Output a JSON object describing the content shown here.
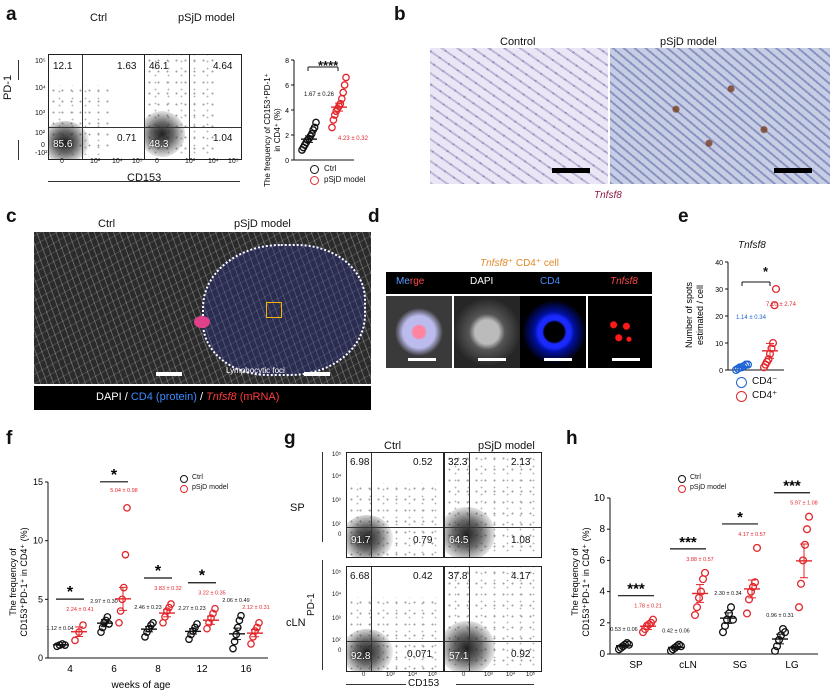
{
  "panels": {
    "a": {
      "label": "a",
      "titles": [
        "Ctrl",
        "pSjD model"
      ],
      "y_axis": "PD-1",
      "x_axis": "CD153",
      "ctrl_quadrants": {
        "ul": "12.1",
        "ur": "1.63",
        "ll": "85.6",
        "lr": "0.71"
      },
      "psjd_quadrants": {
        "ul": "46.1",
        "ur": "4.64",
        "ll": "48.3",
        "lr": "1.04"
      },
      "ticks": {
        "y": [
          "10⁵",
          "10⁴",
          "10³",
          "10²",
          "0",
          "-10²"
        ],
        "x": [
          "0",
          "10³",
          "10⁴",
          "10⁵"
        ]
      },
      "scatter_ylabel_line1": "The frequency of CD153⁺PD-1⁺",
      "scatter_ylabel_line2": "in CD4⁺ (%)",
      "sig": "****",
      "ctrl_stat": "1.67 ± 0.26",
      "psjd_stat": "4.23 ± 0.32",
      "legend": [
        "Ctrl",
        "pSjD model"
      ]
    },
    "b": {
      "label": "b",
      "titles": [
        "Control",
        "pSjD model"
      ],
      "caption": "Tnfsf8"
    },
    "c": {
      "label": "c",
      "titles": [
        "Ctrl",
        "pSjD model"
      ],
      "foci": "Lymphocytic foci",
      "legend_dapi": "DAPI",
      "legend_sep1": " / ",
      "legend_cd4": "CD4 (protein)",
      "legend_sep2": " / ",
      "legend_tnfsf8": "Tnfsf8",
      "legend_mrna": " (mRNA)"
    },
    "d": {
      "label": "d",
      "title_gene": "Tnfsf8",
      "title_rest": "⁺ CD4⁺ cell",
      "channels": [
        "Me",
        "rge",
        "DAPI",
        "CD4",
        "Tnfsf8"
      ]
    },
    "e": {
      "label": "e",
      "title": "Tnfsf8",
      "ylabel_line1": "Number of spots",
      "ylabel_line2": "estimated / cell",
      "sig": "*",
      "neg_stat": "1.14 ± 0.34",
      "pos_stat": "7.10 ± 2.74",
      "legend": [
        "CD4⁻",
        "CD4⁺"
      ]
    },
    "f": {
      "label": "f",
      "legend": [
        "Ctrl",
        "pSjD model"
      ],
      "ylabel_line1": "The frequency of",
      "ylabel_line2": "CD153⁺PD-1⁺ in CD4⁺ (%)",
      "xlabel": "weeks of age"
    },
    "g": {
      "label": "g",
      "titles": [
        "Ctrl",
        "pSjD model"
      ],
      "rows": [
        "SP",
        "cLN"
      ],
      "y_axis": "PD-1",
      "x_axis": "CD153",
      "sp_ctrl": {
        "ul": "6.98",
        "ur": "0.52",
        "ll": "91.7",
        "lr": "0.79"
      },
      "sp_psjd": {
        "ul": "32.3",
        "ur": "2.13",
        "ll": "64.5",
        "lr": "1.08"
      },
      "cln_ctrl": {
        "ul": "6.68",
        "ur": "0.42",
        "ll": "92.8",
        "lr": "0.071"
      },
      "cln_psjd": {
        "ul": "37.8",
        "ur": "4.17",
        "ll": "57.1",
        "lr": "0.92"
      },
      "ticks": {
        "y": [
          "10⁵",
          "10⁴",
          "10³",
          "10²",
          "0"
        ],
        "x": [
          "0",
          "10³",
          "10⁴",
          "10⁵"
        ]
      }
    },
    "h": {
      "label": "h",
      "legend": [
        "Ctrl",
        "pSjD model"
      ],
      "ylabel_line1": "The frequency of",
      "ylabel_line2": "CD153⁺PD-1⁺ in CD4⁺ (%)"
    }
  },
  "colors": {
    "ctrl": "#111111",
    "psjd": "#e3262b",
    "cd4": "#1e63d6",
    "gene_label": "#8a1a4a",
    "title_orange": "#e08a2a"
  },
  "chart_data": [
    {
      "id": "a-scatter",
      "type": "scatter",
      "categories": [
        "Ctrl",
        "pSjD model"
      ],
      "ylim": [
        0,
        8
      ],
      "yticks": [
        0,
        2,
        4,
        6,
        8
      ],
      "series": [
        {
          "name": "Ctrl",
          "values": [
            0.8,
            1.0,
            1.2,
            1.4,
            1.6,
            1.7,
            1.9,
            2.1,
            2.4,
            2.6,
            3.0
          ],
          "mean": 1.67,
          "sem": 0.26,
          "color": "#111111"
        },
        {
          "name": "pSjD model",
          "values": [
            2.6,
            3.2,
            3.6,
            3.9,
            4.1,
            4.3,
            4.5,
            4.9,
            5.4,
            6.0,
            6.6
          ],
          "mean": 4.23,
          "sem": 0.32,
          "color": "#e3262b"
        }
      ]
    },
    {
      "id": "e-scatter",
      "type": "scatter",
      "categories": [
        "CD4⁻",
        "CD4⁺"
      ],
      "ylim": [
        0,
        40
      ],
      "yticks": [
        0,
        10,
        20,
        30,
        40
      ],
      "series": [
        {
          "name": "CD4⁻",
          "values": [
            0,
            0.5,
            1,
            1,
            1.5,
            2,
            2
          ],
          "mean": 1.14,
          "sem": 0.34,
          "color": "#1e63d6"
        },
        {
          "name": "CD4⁺",
          "values": [
            1,
            2,
            3,
            4,
            6,
            8,
            10,
            24,
            30
          ],
          "mean": 7.1,
          "sem": 2.74,
          "color": "#e3262b"
        }
      ]
    },
    {
      "id": "f-scatter",
      "type": "scatter",
      "categories": [
        "4",
        "6",
        "8",
        "12",
        "16"
      ],
      "ylim": [
        0,
        15
      ],
      "yticks": [
        0,
        5,
        10,
        15
      ],
      "xlabel": "weeks of age",
      "series": [
        {
          "name": "Ctrl",
          "values": [
            [
              1.0,
              1.1,
              1.2,
              1.1
            ],
            [
              2.2,
              2.6,
              3.0,
              3.2,
              3.5,
              2.9
            ],
            [
              1.8,
              2.2,
              2.5,
              2.8,
              3.0
            ],
            [
              1.6,
              2.0,
              2.3,
              2.6,
              2.9
            ],
            [
              0.8,
              1.4,
              2.0,
              2.6,
              3.2,
              3.6
            ]
          ],
          "means": [
            1.12,
            2.97,
            2.46,
            2.27,
            2.06
          ],
          "sems": [
            0.04,
            0.3,
            0.23,
            0.23,
            0.49
          ],
          "color": "#111111"
        },
        {
          "name": "pSjD model",
          "values": [
            [
              1.5,
              2.2,
              2.8
            ],
            [
              3.0,
              4.0,
              5.0,
              6.0,
              8.8,
              12.8
            ],
            [
              3.0,
              3.5,
              4.0,
              4.3,
              4.6
            ],
            [
              2.5,
              3.0,
              3.4,
              3.8,
              4.2
            ],
            [
              1.2,
              1.8,
              2.3,
              2.6,
              3.0
            ]
          ],
          "means": [
            2.24,
            5.04,
            3.83,
            3.22,
            2.12
          ],
          "sems": [
            0.41,
            0.98,
            0.32,
            0.35,
            0.31
          ],
          "color": "#e3262b"
        }
      ],
      "annotations": [
        {
          "x": "4",
          "text": "1.12 ± 0.04",
          "series": "Ctrl"
        },
        {
          "x": "4",
          "text": "2.24 ± 0.41",
          "series": "pSjD model"
        },
        {
          "x": "6",
          "text": "2.97 ± 0.30",
          "series": "Ctrl"
        },
        {
          "x": "6",
          "text": "5.04 ± 0.98",
          "series": "pSjD model"
        },
        {
          "x": "8",
          "text": "2.46 ± 0.23",
          "series": "Ctrl"
        },
        {
          "x": "8",
          "text": "3.83 ± 0.32",
          "series": "pSjD model"
        },
        {
          "x": "12",
          "text": "2.27 ± 0.23",
          "series": "Ctrl"
        },
        {
          "x": "12",
          "text": "3.22 ± 0.35",
          "series": "pSjD model"
        },
        {
          "x": "16",
          "text": "2.06 ± 0.49",
          "series": "Ctrl"
        },
        {
          "x": "16",
          "text": "2.12 ± 0.31",
          "series": "pSjD model"
        }
      ],
      "significance": [
        "*",
        "*",
        "*",
        "*",
        ""
      ]
    },
    {
      "id": "h-scatter",
      "type": "scatter",
      "categories": [
        "SP",
        "cLN",
        "SG",
        "LG"
      ],
      "ylim": [
        0,
        10
      ],
      "yticks": [
        0,
        2,
        4,
        6,
        8,
        10
      ],
      "series": [
        {
          "name": "Ctrl",
          "values": [
            [
              0.3,
              0.4,
              0.5,
              0.6,
              0.7,
              0.6
            ],
            [
              0.2,
              0.3,
              0.4,
              0.5,
              0.6,
              0.5
            ],
            [
              1.4,
              1.8,
              2.2,
              2.6,
              3.0,
              2.2
            ],
            [
              0.2,
              0.5,
              0.9,
              1.2,
              1.6,
              1.4
            ]
          ],
          "means": [
            0.53,
            0.42,
            2.3,
            0.96
          ],
          "sems": [
            0.06,
            0.06,
            0.34,
            0.31
          ],
          "color": "#111111"
        },
        {
          "name": "pSjD model",
          "values": [
            [
              1.4,
              1.6,
              1.8,
              1.9,
              2.0,
              2.2
            ],
            [
              2.5,
              3.0,
              3.6,
              4.0,
              4.8,
              5.2
            ],
            [
              2.6,
              3.5,
              4.0,
              4.3,
              4.6,
              6.8
            ],
            [
              3.0,
              4.5,
              6.0,
              7.0,
              8.0,
              8.8
            ]
          ],
          "means": [
            1.78,
            3.88,
            4.17,
            5.97
          ],
          "sems": [
            0.21,
            0.57,
            0.57,
            1.08
          ],
          "color": "#e3262b"
        }
      ],
      "annotations": [
        {
          "x": "SP",
          "text": "0.53 ± 0.06",
          "series": "Ctrl"
        },
        {
          "x": "SP",
          "text": "1.78 ± 0.21",
          "series": "pSjD model"
        },
        {
          "x": "cLN",
          "text": "0.42 ± 0.06",
          "series": "Ctrl"
        },
        {
          "x": "cLN",
          "text": "3.88 ± 0.57",
          "series": "pSjD model"
        },
        {
          "x": "SG",
          "text": "2.30 ± 0.34",
          "series": "Ctrl"
        },
        {
          "x": "SG",
          "text": "4.17 ± 0.57",
          "series": "pSjD model"
        },
        {
          "x": "LG",
          "text": "0.96 ± 0.31",
          "series": "Ctrl"
        },
        {
          "x": "LG",
          "text": "5.97 ± 1.08",
          "series": "pSjD model"
        }
      ],
      "significance": [
        "***",
        "***",
        "*",
        "***"
      ]
    }
  ]
}
